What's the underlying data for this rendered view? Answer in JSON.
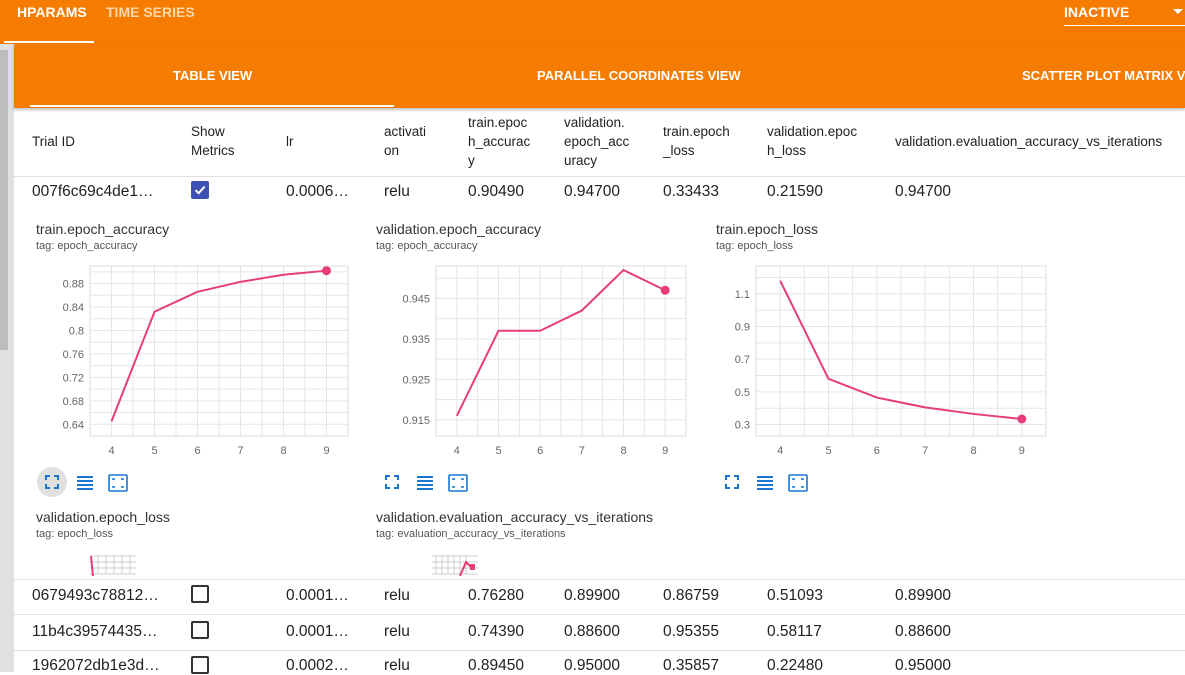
{
  "topbar": {
    "tabs": [
      "HPARAMS",
      "TIME SERIES"
    ],
    "run_selector": "INACTIVE"
  },
  "view_tabs": [
    "TABLE VIEW",
    "PARALLEL COORDINATES VIEW",
    "SCATTER PLOT MATRIX V"
  ],
  "table": {
    "headers": {
      "trial_id": "Trial ID",
      "show_metrics": [
        "Show",
        "Metrics"
      ],
      "lr": "lr",
      "activation": [
        "activati",
        "on"
      ],
      "train_acc": [
        "train.epoc",
        "h_accurac",
        "y"
      ],
      "val_acc": [
        "validation.",
        "epoch_acc",
        "uracy"
      ],
      "train_loss": [
        "train.epoch",
        "_loss"
      ],
      "val_loss": [
        "validation.epoc",
        "h_loss"
      ],
      "val_eval": "validation.evaluation_accuracy_vs_iterations"
    },
    "rows": [
      {
        "trial": "007f6c69c4de1…",
        "checked": true,
        "lr": "0.0006…",
        "activation": "relu",
        "train_acc": "0.90490",
        "val_acc": "0.94700",
        "train_loss": "0.33433",
        "val_loss": "0.21590",
        "val_eval": "0.94700"
      },
      {
        "trial": "0679493c78812…",
        "checked": false,
        "lr": "0.0001…",
        "activation": "relu",
        "train_acc": "0.76280",
        "val_acc": "0.89900",
        "train_loss": "0.86759",
        "val_loss": "0.51093",
        "val_eval": "0.89900"
      },
      {
        "trial": "11b4c39574435…",
        "checked": false,
        "lr": "0.0001…",
        "activation": "relu",
        "train_acc": "0.74390",
        "val_acc": "0.88600",
        "train_loss": "0.95355",
        "val_loss": "0.58117",
        "val_eval": "0.88600"
      },
      {
        "trial": "1962072db1e3d…",
        "checked": false,
        "lr": "0.0002…",
        "activation": "relu",
        "train_acc": "0.89450",
        "val_acc": "0.95000",
        "train_loss": "0.35857",
        "val_loss": "0.22480",
        "val_eval": "0.95000"
      }
    ]
  },
  "chart_data": [
    {
      "type": "line",
      "title": "train.epoch_accuracy",
      "tag": "tag: epoch_accuracy",
      "x": [
        4,
        5,
        6,
        7,
        8,
        9
      ],
      "y": [
        0.645,
        0.832,
        0.866,
        0.883,
        0.895,
        0.902
      ],
      "xlim": [
        3.5,
        9.5
      ],
      "ylim": [
        0.62,
        0.91
      ],
      "xticks": [
        4,
        5,
        6,
        7,
        8,
        9
      ],
      "yticks": [
        0.64,
        0.68,
        0.72,
        0.76,
        0.8,
        0.84,
        0.88
      ],
      "ytick_labels": [
        "0.64",
        "0.68",
        "0.72",
        "0.76",
        "0.8",
        "0.84",
        "0.88"
      ],
      "color": "#e73d7a",
      "grid": true
    },
    {
      "type": "line",
      "title": "validation.epoch_accuracy",
      "tag": "tag: epoch_accuracy",
      "x": [
        4,
        5,
        6,
        7,
        8,
        9
      ],
      "y": [
        0.916,
        0.937,
        0.937,
        0.942,
        0.952,
        0.947
      ],
      "xlim": [
        3.5,
        9.5
      ],
      "ylim": [
        0.911,
        0.953
      ],
      "xticks": [
        4,
        5,
        6,
        7,
        8,
        9
      ],
      "yticks": [
        0.915,
        0.925,
        0.935,
        0.945
      ],
      "ytick_labels": [
        "0.915",
        "0.925",
        "0.935",
        "0.945"
      ],
      "color": "#e73d7a",
      "grid": true
    },
    {
      "type": "line",
      "title": "train.epoch_loss",
      "tag": "tag: epoch_loss",
      "x": [
        4,
        5,
        6,
        7,
        8,
        9
      ],
      "y": [
        1.18,
        0.58,
        0.465,
        0.405,
        0.365,
        0.334
      ],
      "xlim": [
        3.5,
        9.5
      ],
      "ylim": [
        0.23,
        1.27
      ],
      "xticks": [
        4,
        5,
        6,
        7,
        8,
        9
      ],
      "yticks": [
        0.3,
        0.5,
        0.7,
        0.9,
        1.1
      ],
      "ytick_labels": [
        "0.3",
        "0.5",
        "0.7",
        "0.9",
        "1.1"
      ],
      "color": "#e73d7a",
      "grid": true
    }
  ],
  "lower_charts": [
    {
      "title": "validation.epoch_loss",
      "tag": "tag: epoch_loss"
    },
    {
      "title": "validation.evaluation_accuracy_vs_iterations",
      "tag": "tag: evaluation_accuracy_vs_iterations"
    }
  ]
}
